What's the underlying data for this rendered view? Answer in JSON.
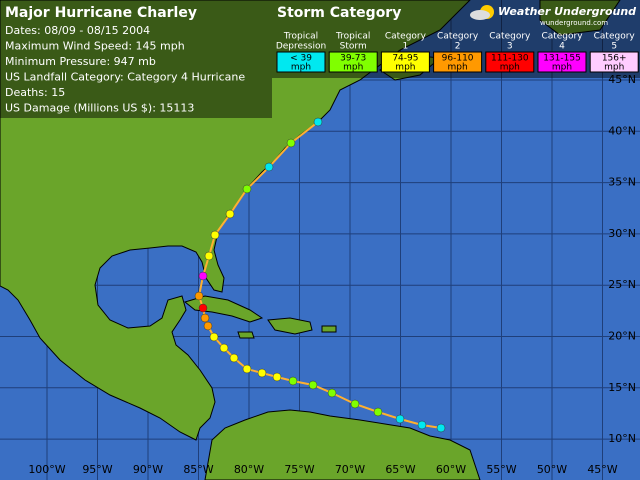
{
  "info": {
    "title": "Major Hurricane Charley",
    "lines": [
      "Dates: 08/09 - 08/15 2004",
      "Maximum Wind Speed: 145 mph",
      "Minimum Pressure: 947 mb",
      "US Landfall Category: Category 4 Hurricane",
      "Deaths: 15",
      "US Damage (Millions US $): 15113"
    ]
  },
  "legend": {
    "title": "Storm Category",
    "categories": [
      {
        "name": [
          "Tropical",
          "Depression"
        ],
        "range": [
          "< 39",
          "mph"
        ],
        "color": "#00e8f0"
      },
      {
        "name": [
          "Tropical",
          "Storm"
        ],
        "range": [
          "39-73",
          "mph"
        ],
        "color": "#80ff00"
      },
      {
        "name": [
          "Category",
          "1"
        ],
        "range": [
          "74-95",
          "mph"
        ],
        "color": "#ffff00"
      },
      {
        "name": [
          "Category",
          "2"
        ],
        "range": [
          "96-110",
          "mph"
        ],
        "color": "#ff9900"
      },
      {
        "name": [
          "Category",
          "3"
        ],
        "range": [
          "111-130",
          "mph"
        ],
        "color": "#ff0000"
      },
      {
        "name": [
          "Category",
          "4"
        ],
        "range": [
          "131-155",
          "mph"
        ],
        "color": "#ff00ff"
      },
      {
        "name": [
          "Category",
          "5"
        ],
        "range": [
          "156+",
          "mph"
        ],
        "color": "#ffccff"
      }
    ]
  },
  "logo": {
    "name": "Weather Underground",
    "site": "wunderground.com"
  },
  "latitudes": [
    "45°N",
    "40°N",
    "35°N",
    "30°N",
    "25°N",
    "20°N",
    "15°N",
    "10°N"
  ],
  "longitudes": [
    "100°W",
    "95°W",
    "90°W",
    "85°W",
    "80°W",
    "75°W",
    "70°W",
    "65°W",
    "60°W",
    "55°W",
    "50°W",
    "45°W"
  ]
}
